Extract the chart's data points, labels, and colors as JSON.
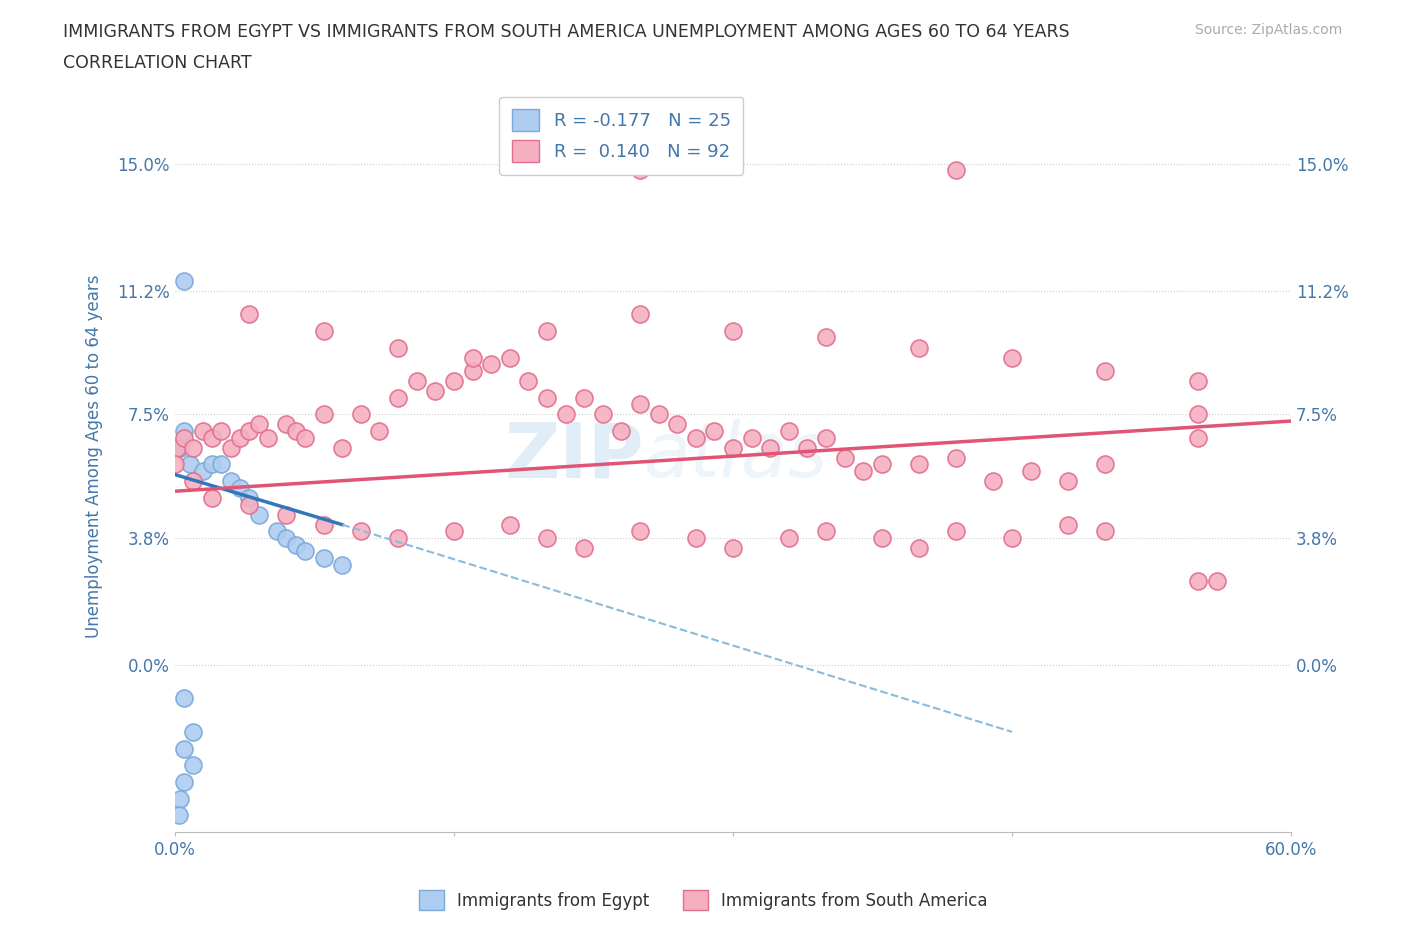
{
  "title_line1": "IMMIGRANTS FROM EGYPT VS IMMIGRANTS FROM SOUTH AMERICA UNEMPLOYMENT AMONG AGES 60 TO 64 YEARS",
  "title_line2": "CORRELATION CHART",
  "source": "Source: ZipAtlas.com",
  "ylabel": "Unemployment Among Ages 60 to 64 years",
  "xlim": [
    0.0,
    0.6
  ],
  "ylim": [
    -0.05,
    0.175
  ],
  "yticks": [
    0.0,
    0.038,
    0.075,
    0.112,
    0.15
  ],
  "ytick_labels": [
    "0.0%",
    "3.8%",
    "7.5%",
    "11.2%",
    "15.0%"
  ],
  "xtick_positions": [
    0.0,
    0.15,
    0.3,
    0.45,
    0.6
  ],
  "xtick_labels": [
    "0.0%",
    "",
    "",
    "",
    "60.0%"
  ],
  "egypt_color": "#aeccf0",
  "south_america_color": "#f5afc0",
  "egypt_edge_color": "#7aaad8",
  "south_america_edge_color": "#e07090",
  "regression_egypt_solid_color": "#3377bb",
  "regression_egypt_dash_color": "#88bbdd",
  "regression_sa_color": "#e05575",
  "watermark_text": "ZIPatlas",
  "legend_r_egypt": "R = -0.177",
  "legend_n_egypt": "N = 25",
  "legend_r_sa": "R =  0.140",
  "legend_n_sa": "N = 92",
  "background_color": "#ffffff",
  "grid_color": "#cccccc",
  "title_color": "#333333",
  "axis_label_color": "#4477aa",
  "tick_label_color": "#4477aa",
  "source_color": "#aaaaaa",
  "egypt_points_x": [
    0.005,
    0.005,
    0.003,
    0.001,
    0.008,
    0.015,
    0.02,
    0.025,
    0.03,
    0.035,
    0.04,
    0.045,
    0.055,
    0.06,
    0.065,
    0.07,
    0.08,
    0.09,
    0.005,
    0.01,
    0.005,
    0.01,
    0.005,
    0.003,
    0.002
  ],
  "egypt_points_y": [
    0.115,
    0.07,
    0.065,
    0.065,
    0.06,
    0.058,
    0.06,
    0.06,
    0.055,
    0.053,
    0.05,
    0.045,
    0.04,
    0.038,
    0.036,
    0.034,
    0.032,
    0.03,
    -0.01,
    -0.02,
    -0.025,
    -0.03,
    -0.035,
    -0.04,
    -0.045
  ],
  "sa_points_x": [
    0.001,
    0.005,
    0.01,
    0.015,
    0.02,
    0.025,
    0.03,
    0.035,
    0.04,
    0.045,
    0.05,
    0.06,
    0.065,
    0.07,
    0.08,
    0.09,
    0.1,
    0.11,
    0.12,
    0.13,
    0.14,
    0.15,
    0.16,
    0.17,
    0.18,
    0.19,
    0.2,
    0.21,
    0.22,
    0.23,
    0.24,
    0.25,
    0.26,
    0.27,
    0.28,
    0.29,
    0.3,
    0.31,
    0.32,
    0.33,
    0.34,
    0.35,
    0.36,
    0.37,
    0.38,
    0.4,
    0.42,
    0.44,
    0.46,
    0.48,
    0.5,
    0.55,
    0.0,
    0.01,
    0.02,
    0.04,
    0.06,
    0.08,
    0.1,
    0.12,
    0.15,
    0.18,
    0.2,
    0.22,
    0.25,
    0.28,
    0.3,
    0.33,
    0.35,
    0.38,
    0.4,
    0.42,
    0.45,
    0.48,
    0.5,
    0.55,
    0.04,
    0.08,
    0.12,
    0.16,
    0.2,
    0.25,
    0.3,
    0.35,
    0.4,
    0.45,
    0.5,
    0.55,
    0.25,
    0.42,
    0.55,
    0.56
  ],
  "sa_points_y": [
    0.065,
    0.068,
    0.065,
    0.07,
    0.068,
    0.07,
    0.065,
    0.068,
    0.07,
    0.072,
    0.068,
    0.072,
    0.07,
    0.068,
    0.075,
    0.065,
    0.075,
    0.07,
    0.08,
    0.085,
    0.082,
    0.085,
    0.088,
    0.09,
    0.092,
    0.085,
    0.08,
    0.075,
    0.08,
    0.075,
    0.07,
    0.078,
    0.075,
    0.072,
    0.068,
    0.07,
    0.065,
    0.068,
    0.065,
    0.07,
    0.065,
    0.068,
    0.062,
    0.058,
    0.06,
    0.06,
    0.062,
    0.055,
    0.058,
    0.055,
    0.06,
    0.068,
    0.06,
    0.055,
    0.05,
    0.048,
    0.045,
    0.042,
    0.04,
    0.038,
    0.04,
    0.042,
    0.038,
    0.035,
    0.04,
    0.038,
    0.035,
    0.038,
    0.04,
    0.038,
    0.035,
    0.04,
    0.038,
    0.042,
    0.04,
    0.075,
    0.105,
    0.1,
    0.095,
    0.092,
    0.1,
    0.105,
    0.1,
    0.098,
    0.095,
    0.092,
    0.088,
    0.085,
    0.148,
    0.148,
    0.025,
    0.025
  ],
  "egypt_regression_x0": 0.0,
  "egypt_regression_y0": 0.057,
  "egypt_regression_x1": 0.09,
  "egypt_regression_y1": 0.042,
  "egypt_regression_dash_x0": 0.09,
  "egypt_regression_dash_y0": 0.042,
  "egypt_regression_dash_x1": 0.45,
  "egypt_regression_dash_y1": -0.02,
  "sa_regression_x0": 0.0,
  "sa_regression_y0": 0.052,
  "sa_regression_x1": 0.6,
  "sa_regression_y1": 0.073
}
